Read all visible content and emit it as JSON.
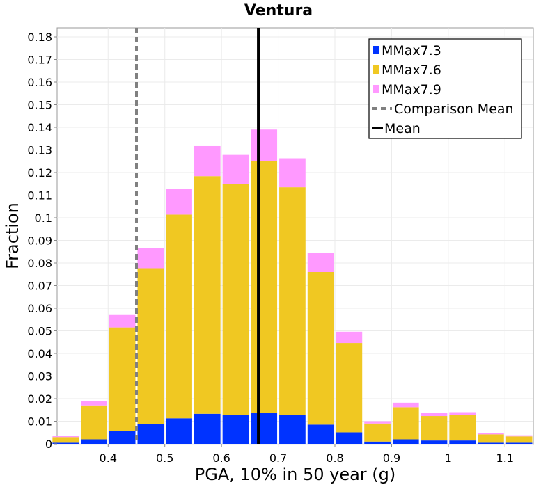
{
  "chart_data": {
    "type": "bar",
    "stacked": true,
    "title": "Ventura",
    "xlabel": "PGA, 10% in 50 year (g)",
    "ylabel": "Fraction",
    "xlim": [
      0.31,
      1.15
    ],
    "ylim": [
      0,
      0.184
    ],
    "bin_width": 0.05,
    "x": [
      0.325,
      0.375,
      0.425,
      0.475,
      0.525,
      0.575,
      0.625,
      0.675,
      0.725,
      0.775,
      0.825,
      0.875,
      0.925,
      0.975,
      1.025,
      1.075,
      1.125
    ],
    "series": [
      {
        "name": "MMax7.3",
        "color": "#0033ff",
        "values": [
          0.0005,
          0.002,
          0.0057,
          0.0087,
          0.0113,
          0.0133,
          0.0127,
          0.0137,
          0.0127,
          0.0085,
          0.0051,
          0.001,
          0.002,
          0.0015,
          0.0015,
          0.0005,
          0.0005
        ]
      },
      {
        "name": "MMax7.6",
        "color": "#f0c822",
        "values": [
          0.0025,
          0.015,
          0.0458,
          0.069,
          0.0901,
          0.1051,
          0.1023,
          0.1113,
          0.1008,
          0.0675,
          0.0395,
          0.008,
          0.0142,
          0.0108,
          0.0113,
          0.0037,
          0.0028
        ]
      },
      {
        "name": "MMax7.9",
        "color": "#ff99ff",
        "values": [
          0.0005,
          0.002,
          0.0055,
          0.0088,
          0.0113,
          0.0133,
          0.0128,
          0.014,
          0.0128,
          0.0085,
          0.005,
          0.001,
          0.002,
          0.0015,
          0.0012,
          0.0005,
          0.0005
        ]
      }
    ],
    "lines": [
      {
        "name": "Comparison Mean",
        "x": 0.45,
        "color": "#808080",
        "style": "dashed"
      },
      {
        "name": "Mean",
        "x": 0.665,
        "color": "#000000",
        "style": "solid"
      }
    ],
    "yticks": [
      0,
      0.01,
      0.02,
      0.03,
      0.04,
      0.05,
      0.06,
      0.07,
      0.08,
      0.09,
      0.1,
      0.11,
      0.12,
      0.13,
      0.14,
      0.15,
      0.16,
      0.17,
      0.18
    ],
    "ytick_labels": [
      "0",
      "0.01",
      "0.02",
      "0.03",
      "0.04",
      "0.05",
      "0.06",
      "0.07",
      "0.08",
      "0.09",
      "0.1",
      "0.11",
      "0.12",
      "0.13",
      "0.14",
      "0.15",
      "0.16",
      "0.17",
      "0.18"
    ],
    "xticks": [
      0.4,
      0.5,
      0.6,
      0.7,
      0.8,
      0.9,
      1.0,
      1.1
    ],
    "xtick_labels": [
      "0.4",
      "0.5",
      "0.6",
      "0.7",
      "0.8",
      "0.9",
      "1",
      "1.1"
    ],
    "grid": true,
    "legend": {
      "position": "top-right",
      "entries": [
        {
          "label": "MMax7.3",
          "kind": "box",
          "color": "#0033ff"
        },
        {
          "label": "MMax7.6",
          "kind": "box",
          "color": "#f0c822"
        },
        {
          "label": "MMax7.9",
          "kind": "box",
          "color": "#ff99ff"
        },
        {
          "label": "Comparison Mean",
          "kind": "dash",
          "color": "#808080"
        },
        {
          "label": "Mean",
          "kind": "line",
          "color": "#000000"
        }
      ]
    }
  }
}
